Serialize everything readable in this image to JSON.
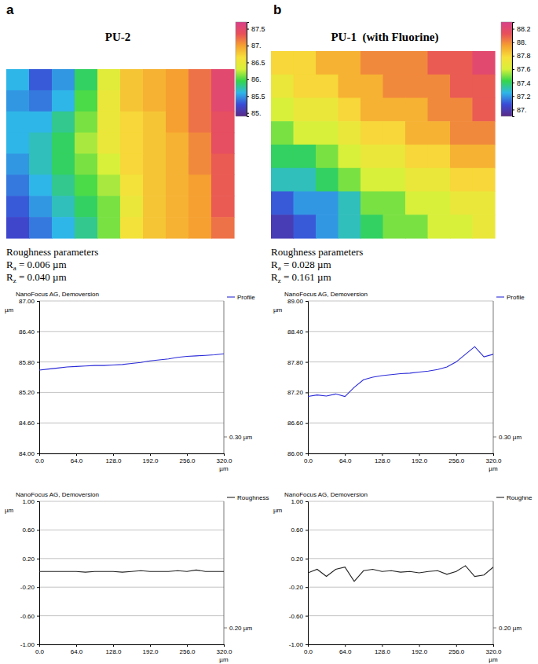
{
  "chart_data": [
    {
      "type": "heatmap",
      "panel": "a",
      "title": "PU-2",
      "cells": [
        [
          85.6,
          85.3,
          85.5,
          85.9,
          86.4,
          86.8,
          86.9,
          87.0,
          87.2,
          87.5
        ],
        [
          85.5,
          85.4,
          85.6,
          86.0,
          86.5,
          86.8,
          86.9,
          87.0,
          87.2,
          87.5
        ],
        [
          85.6,
          85.6,
          85.8,
          86.1,
          86.5,
          86.7,
          86.8,
          87.0,
          87.2,
          87.4
        ],
        [
          85.6,
          85.7,
          85.9,
          86.2,
          86.5,
          86.7,
          86.8,
          86.9,
          87.1,
          87.4
        ],
        [
          85.5,
          85.7,
          85.9,
          86.1,
          86.3,
          86.7,
          86.8,
          86.9,
          87.1,
          87.3
        ],
        [
          85.4,
          85.6,
          85.8,
          86.0,
          86.2,
          86.6,
          86.8,
          86.9,
          87.0,
          87.3
        ],
        [
          85.3,
          85.5,
          85.7,
          85.9,
          86.1,
          86.5,
          86.8,
          86.9,
          87.0,
          87.3
        ],
        [
          85.2,
          85.4,
          85.6,
          85.8,
          86.1,
          86.6,
          86.8,
          86.9,
          87.0,
          87.2
        ]
      ],
      "color_bar": {
        "range": [
          84.9,
          87.7
        ],
        "ticks": [
          {
            "value": 85,
            "label": "85."
          },
          85.5,
          {
            "value": 86,
            "label": "86."
          },
          86.5,
          {
            "value": 87,
            "label": "87."
          },
          87.5
        ],
        "colors": [
          "#5b2a86",
          "#3a4bd6",
          "#2fb6e8",
          "#34d64a",
          "#d8f03a",
          "#f7e03a",
          "#f5a030",
          "#e8505a",
          "#d9408a"
        ]
      },
      "roughness_title": "Roughness parameters",
      "parameters": [
        {
          "symbol": "R",
          "subscript": "a",
          "text": " = 0.006 µm"
        },
        {
          "symbol": "R",
          "subscript": "z",
          "text": " = 0.040 µm"
        }
      ]
    },
    {
      "type": "heatmap",
      "panel": "b",
      "title": "PU-1  (with Fluorine)",
      "cells": [
        [
          87.8,
          87.8,
          87.9,
          87.9,
          88.0,
          88.0,
          88.0,
          88.1,
          88.1,
          88.2
        ],
        [
          87.7,
          87.8,
          87.8,
          87.9,
          87.9,
          88.0,
          88.0,
          88.0,
          88.1,
          88.1
        ],
        [
          87.6,
          87.7,
          87.7,
          87.8,
          87.9,
          87.9,
          87.9,
          88.0,
          88.0,
          88.1
        ],
        [
          87.5,
          87.6,
          87.6,
          87.7,
          87.8,
          87.8,
          87.9,
          87.9,
          88.0,
          88.0
        ],
        [
          87.4,
          87.4,
          87.5,
          87.6,
          87.7,
          87.7,
          87.8,
          87.8,
          87.9,
          87.9
        ],
        [
          87.3,
          87.3,
          87.4,
          87.5,
          87.6,
          87.6,
          87.7,
          87.7,
          87.8,
          87.8
        ],
        [
          87.1,
          87.2,
          87.2,
          87.3,
          87.5,
          87.5,
          87.6,
          87.6,
          87.7,
          87.7
        ],
        [
          87.0,
          87.1,
          87.2,
          87.3,
          87.4,
          87.5,
          87.5,
          87.6,
          87.6,
          87.7
        ]
      ],
      "color_bar": {
        "range": [
          86.9,
          88.3
        ],
        "ticks": [
          {
            "value": 87,
            "label": "87."
          },
          87.2,
          87.4,
          87.6,
          87.8,
          {
            "value": 88,
            "label": "88."
          },
          88.2
        ],
        "colors": [
          "#5b2a86",
          "#3a4bd6",
          "#2fb6e8",
          "#34d64a",
          "#d8f03a",
          "#f7e03a",
          "#f5a030",
          "#e8505a",
          "#d9408a"
        ]
      },
      "roughness_title": "Roughness parameters",
      "parameters": [
        {
          "symbol": "R",
          "subscript": "a",
          "text": " = 0.028 µm"
        },
        {
          "symbol": "R",
          "subscript": "z",
          "text": " = 0.161 µm"
        }
      ]
    },
    {
      "type": "line",
      "title": "NanoFocus AG, Demoversion",
      "x_label": "µm",
      "y_label": "µm",
      "x": [
        0,
        16,
        32,
        48,
        64,
        80,
        96,
        112,
        128,
        144,
        160,
        176,
        192,
        208,
        224,
        240,
        256,
        272,
        288,
        304,
        320
      ],
      "series": [
        {
          "name": "Profile",
          "color": "#2a2ad8",
          "values": [
            85.64,
            85.66,
            85.68,
            85.7,
            85.71,
            85.72,
            85.73,
            85.73,
            85.74,
            85.75,
            85.77,
            85.79,
            85.82,
            85.84,
            85.86,
            85.89,
            85.91,
            85.92,
            85.93,
            85.94,
            85.96
          ]
        }
      ],
      "xlim": [
        0,
        320
      ],
      "ylim": [
        84,
        87
      ],
      "xticks": [
        {
          "value": 0,
          "label": "0.0"
        },
        {
          "value": 64,
          "label": "64.0"
        },
        {
          "value": 128,
          "label": "128.0"
        },
        {
          "value": 192,
          "label": "192.0"
        },
        {
          "value": 256,
          "label": "256.0"
        },
        {
          "value": 320,
          "label": "320.0"
        }
      ],
      "yticks": [
        {
          "value": 84,
          "label": "84.00"
        },
        {
          "value": 84.6,
          "label": "84.60"
        },
        {
          "value": 85.2,
          "label": "85.20"
        },
        {
          "value": 85.8,
          "label": "85.80"
        },
        {
          "value": 86.4,
          "label": "86.40"
        },
        {
          "value": 87,
          "label": "87.00"
        }
      ],
      "grid": true,
      "legend": "upper right",
      "annotations": [
        "0.30 µm"
      ]
    },
    {
      "type": "line",
      "title": "NanoFocus AG, Demoversion",
      "x_label": "µm",
      "y_label": "µm",
      "x": [
        0,
        16,
        32,
        48,
        64,
        80,
        96,
        112,
        128,
        144,
        160,
        176,
        192,
        208,
        224,
        240,
        256,
        272,
        288,
        304,
        320
      ],
      "series": [
        {
          "name": "Profile",
          "color": "#2a2ad8",
          "values": [
            87.12,
            87.15,
            87.13,
            87.17,
            87.12,
            87.3,
            87.45,
            87.5,
            87.53,
            87.55,
            87.57,
            87.58,
            87.6,
            87.62,
            87.65,
            87.7,
            87.8,
            87.95,
            88.1,
            87.9,
            87.95
          ]
        }
      ],
      "xlim": [
        0,
        320
      ],
      "ylim": [
        86,
        89
      ],
      "xticks": [
        {
          "value": 0,
          "label": "0.0"
        },
        {
          "value": 64,
          "label": "64.0"
        },
        {
          "value": 128,
          "label": "128.0"
        },
        {
          "value": 192,
          "label": "192.0"
        },
        {
          "value": 256,
          "label": "256.0"
        },
        {
          "value": 320,
          "label": "320.0"
        }
      ],
      "yticks": [
        {
          "value": 86,
          "label": "86.00"
        },
        {
          "value": 86.6,
          "label": "86.60"
        },
        {
          "value": 87.2,
          "label": "87.20"
        },
        {
          "value": 87.8,
          "label": "87.80"
        },
        {
          "value": 88.4,
          "label": "88.40"
        },
        {
          "value": 89,
          "label": "89.00"
        }
      ],
      "grid": true,
      "legend": "upper right",
      "annotations": [
        "0.30 µm"
      ]
    },
    {
      "type": "line",
      "title": "NanoFocus AG, Demoversion",
      "x_label": "µm",
      "y_label": "µm",
      "x": [
        0,
        16,
        32,
        48,
        64,
        80,
        96,
        112,
        128,
        144,
        160,
        176,
        192,
        208,
        224,
        240,
        256,
        272,
        288,
        304,
        320
      ],
      "series": [
        {
          "name": "Roughness",
          "color": "#222222",
          "values": [
            0.02,
            0.02,
            0.02,
            0.02,
            0.02,
            0.01,
            0.02,
            0.02,
            0.02,
            0.01,
            0.02,
            0.03,
            0.02,
            0.02,
            0.02,
            0.03,
            0.02,
            0.04,
            0.02,
            0.02,
            0.02
          ]
        }
      ],
      "xlim": [
        0,
        320
      ],
      "ylim": [
        -1,
        1
      ],
      "xticks": [
        {
          "value": 0,
          "label": "0.0"
        },
        {
          "value": 64,
          "label": "64.0"
        },
        {
          "value": 128,
          "label": "128.0"
        },
        {
          "value": 192,
          "label": "192.0"
        },
        {
          "value": 256,
          "label": "256.0"
        },
        {
          "value": 320,
          "label": "320.0"
        }
      ],
      "yticks": [
        {
          "value": -1,
          "label": "-1.00"
        },
        {
          "value": -0.6,
          "label": "-0.60"
        },
        {
          "value": -0.2,
          "label": "-0.20"
        },
        {
          "value": 0.2,
          "label": "0.20"
        },
        {
          "value": 0.6,
          "label": "0.60"
        },
        {
          "value": 1,
          "label": "1.00"
        }
      ],
      "grid": true,
      "legend": "upper right",
      "annotations": [
        "0.20 µm"
      ]
    },
    {
      "type": "line",
      "title": "NanoFocus AG, Demoversion",
      "x_label": "µm",
      "y_label": "µm",
      "x": [
        0,
        16,
        32,
        48,
        64,
        80,
        96,
        112,
        128,
        144,
        160,
        176,
        192,
        208,
        224,
        240,
        256,
        272,
        288,
        304,
        320
      ],
      "series": [
        {
          "name": "Roughne",
          "color": "#222222",
          "values": [
            0.0,
            0.05,
            -0.05,
            0.05,
            0.08,
            -0.12,
            0.03,
            0.05,
            0.02,
            0.03,
            0.01,
            0.02,
            0.0,
            0.02,
            0.03,
            -0.02,
            0.02,
            0.1,
            -0.05,
            -0.03,
            0.08
          ]
        }
      ],
      "xlim": [
        0,
        320
      ],
      "ylim": [
        -1,
        1
      ],
      "xticks": [
        {
          "value": 0,
          "label": "0.0"
        },
        {
          "value": 64,
          "label": "64.0"
        },
        {
          "value": 128,
          "label": "128.0"
        },
        {
          "value": 192,
          "label": "192.0"
        },
        {
          "value": 256,
          "label": "256.0"
        },
        {
          "value": 320,
          "label": "320.0"
        }
      ],
      "yticks": [
        {
          "value": -1,
          "label": "-1.00"
        },
        {
          "value": -0.6,
          "label": "-0.60"
        },
        {
          "value": -0.2,
          "label": "-0.20"
        },
        {
          "value": 0.2,
          "label": "0.20"
        },
        {
          "value": 0.6,
          "label": "0.60"
        },
        {
          "value": 1,
          "label": "1.00"
        }
      ],
      "grid": true,
      "legend": "upper right",
      "annotations": [
        "0.20 µm"
      ]
    }
  ]
}
